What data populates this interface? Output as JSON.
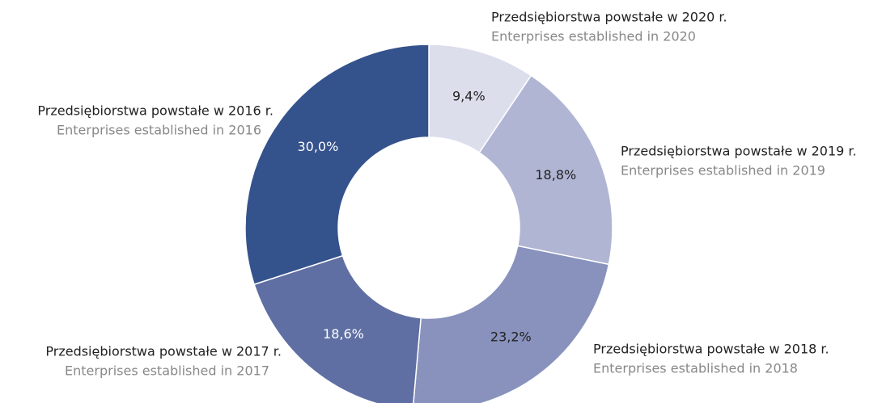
{
  "chart_data": {
    "type": "donut",
    "categories": [
      "Przedsiębiorstwa powstałe w 2020 r.",
      "Przedsiębiorstwa powstałe w 2019 r.",
      "Przedsiębiorstwa powstałe w 2018 r.",
      "Przedsiębiorstwa powstałe w 2017 r.",
      "Przedsiębiorstwa powstałe w 2016 r."
    ],
    "subcategories": [
      "Enterprises established in 2020",
      "Enterprises established in 2019",
      "Enterprises established in 2018",
      "Enterprises established in 2017",
      "Enterprises established in 2016"
    ],
    "values": [
      9.4,
      18.8,
      23.2,
      18.6,
      30.0
    ],
    "value_labels": [
      "9,4%",
      "18,8%",
      "23,2%",
      "18,6%",
      "30,0%"
    ],
    "colors": [
      "#dcdeec",
      "#b0b5d3",
      "#8892bd",
      "#5f6fa3",
      "#34528c"
    ]
  }
}
